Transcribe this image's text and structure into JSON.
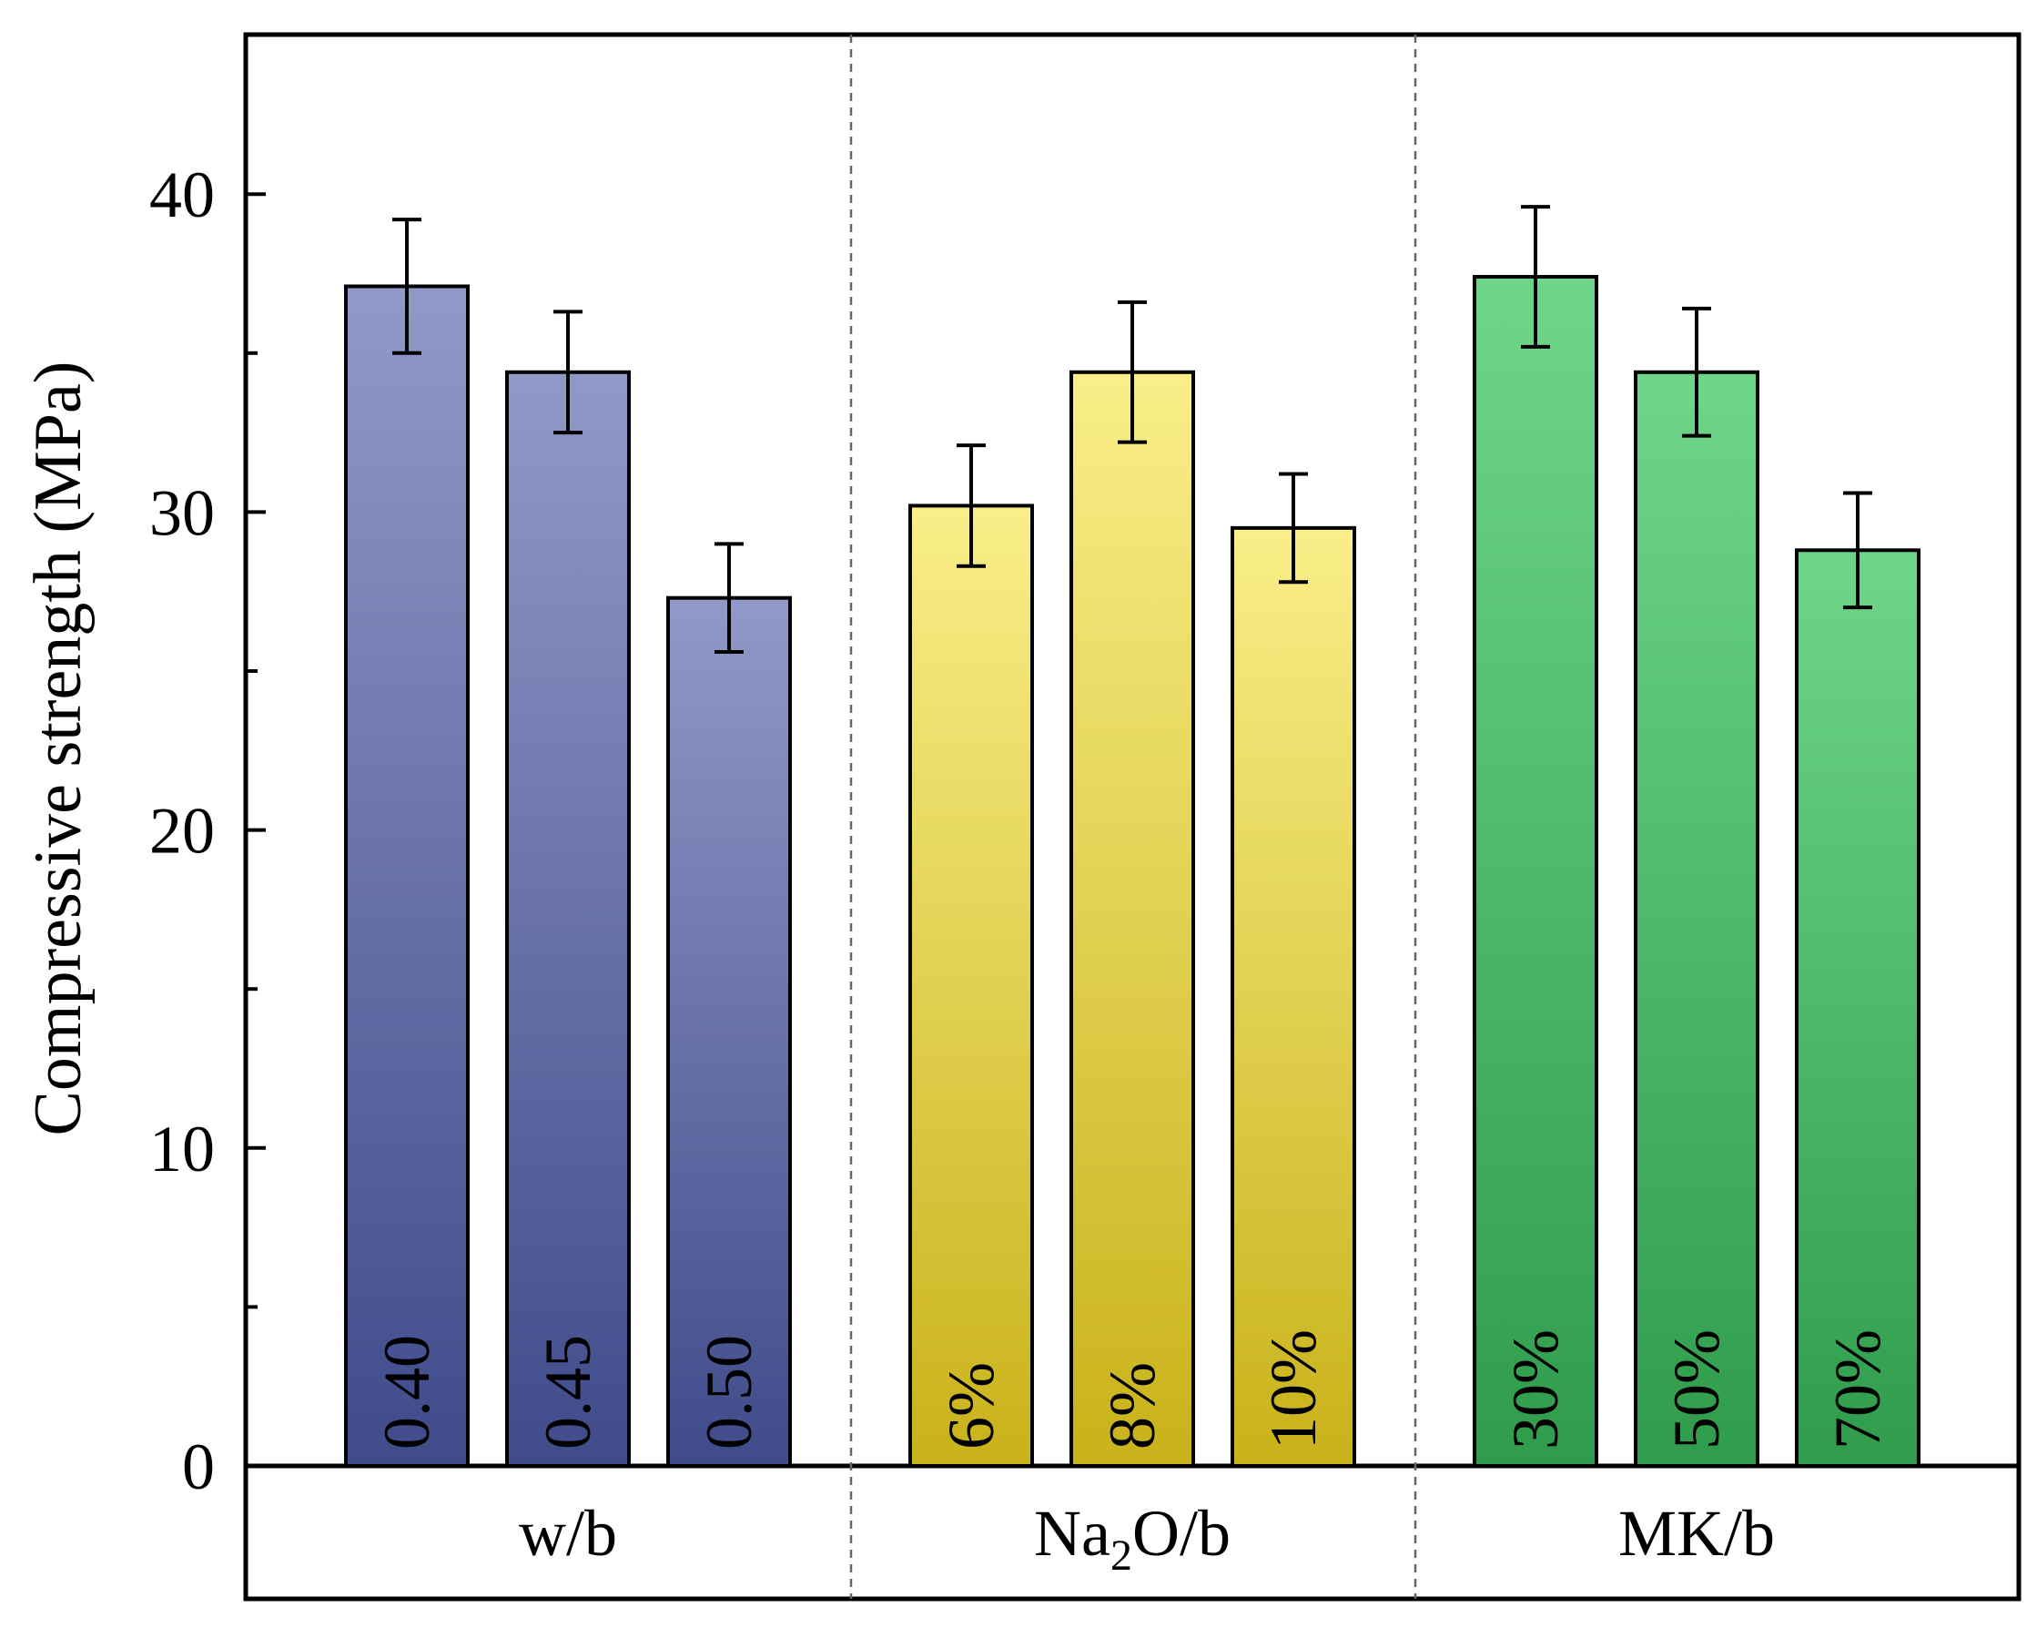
{
  "chart_data": {
    "type": "bar",
    "title": "",
    "xlabel": "",
    "ylabel": "Compressive strength (MPa)",
    "ylim": [
      0,
      44
    ],
    "y_ticks": [
      0,
      10,
      20,
      30,
      40
    ],
    "y_tick_labels": [
      "0",
      "10",
      "20",
      "30",
      "40"
    ],
    "y_minor_ticks": [
      5,
      15,
      25,
      35
    ],
    "grid": false,
    "groups": [
      {
        "label_main": "w/b",
        "label_sub": "",
        "label_tail": "",
        "color_top": "#9199c8",
        "color_bottom": "#3f4b8a",
        "bars": [
          {
            "label": "0.40",
            "value": 37.1,
            "error": 2.1
          },
          {
            "label": "0.45",
            "value": 34.4,
            "error": 1.9
          },
          {
            "label": "0.50",
            "value": 27.3,
            "error": 1.7
          }
        ]
      },
      {
        "label_main": "Na",
        "label_sub": "2",
        "label_tail": "O/b",
        "color_top": "#f9ee88",
        "color_bottom": "#c9b21a",
        "bars": [
          {
            "label": "6%",
            "value": 30.2,
            "error": 1.9
          },
          {
            "label": "8%",
            "value": 34.4,
            "error": 2.2
          },
          {
            "label": "10%",
            "value": 29.5,
            "error": 1.7
          }
        ]
      },
      {
        "label_main": "MK/b",
        "label_sub": "",
        "label_tail": "",
        "color_top": "#6fd58a",
        "color_bottom": "#2f9c4c",
        "bars": [
          {
            "label": "30%",
            "value": 37.4,
            "error": 2.2
          },
          {
            "label": "50%",
            "value": 34.4,
            "error": 2.0
          },
          {
            "label": "70%",
            "value": 28.8,
            "error": 1.8
          }
        ]
      }
    ]
  }
}
